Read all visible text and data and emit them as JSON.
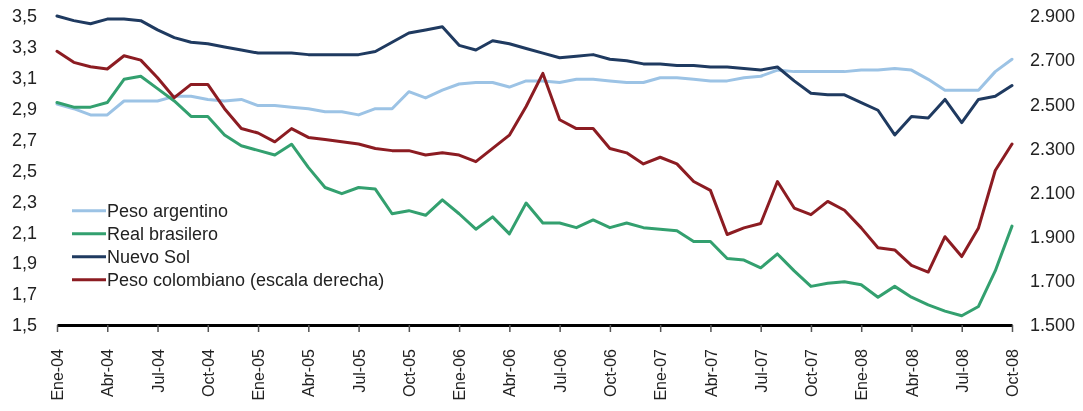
{
  "chart_data": {
    "type": "line",
    "categories": [
      "Ene-04",
      null,
      null,
      "Abr-04",
      null,
      null,
      "Jul-04",
      null,
      null,
      "Oct-04",
      null,
      null,
      "Ene-05",
      null,
      null,
      "Abr-05",
      null,
      null,
      "Jul-05",
      null,
      null,
      "Oct-05",
      null,
      null,
      "Ene-06",
      null,
      null,
      "Abr-06",
      null,
      null,
      "Jul-06",
      null,
      null,
      "Oct-06",
      null,
      null,
      "Ene-07",
      null,
      null,
      "Abr-07",
      null,
      null,
      "Jul-07",
      null,
      null,
      "Oct-07",
      null,
      null,
      "Ene-08",
      null,
      null,
      "Abr-08",
      null,
      null,
      "Jul-08",
      null,
      null,
      "Oct-08"
    ],
    "series": [
      {
        "name": "Peso argentino",
        "color": "#9cc3e5",
        "values": [
          2.93,
          2.9,
          2.86,
          2.86,
          2.95,
          2.95,
          2.95,
          2.98,
          2.98,
          2.96,
          2.95,
          2.96,
          2.92,
          2.92,
          2.91,
          2.9,
          2.88,
          2.88,
          2.86,
          2.9,
          2.9,
          3.01,
          2.97,
          3.02,
          3.06,
          3.07,
          3.07,
          3.04,
          3.08,
          3.08,
          3.07,
          3.09,
          3.09,
          3.08,
          3.07,
          3.07,
          3.1,
          3.1,
          3.09,
          3.08,
          3.08,
          3.1,
          3.11,
          3.15,
          3.14,
          3.14,
          3.14,
          3.14,
          3.15,
          3.15,
          3.16,
          3.15,
          3.09,
          3.02,
          3.02,
          3.02,
          3.14,
          3.22
        ]
      },
      {
        "name": "Real brasilero",
        "color": "#33a06f",
        "values": [
          2.94,
          2.91,
          2.91,
          2.94,
          3.09,
          3.11,
          3.03,
          2.95,
          2.85,
          2.85,
          2.73,
          2.66,
          2.63,
          2.6,
          2.67,
          2.52,
          2.39,
          2.35,
          2.39,
          2.38,
          2.22,
          2.24,
          2.21,
          2.31,
          2.22,
          2.12,
          2.2,
          2.09,
          2.29,
          2.16,
          2.16,
          2.13,
          2.18,
          2.13,
          2.16,
          2.13,
          2.12,
          2.11,
          2.04,
          2.04,
          1.93,
          1.92,
          1.87,
          1.96,
          1.85,
          1.75,
          1.77,
          1.78,
          1.76,
          1.68,
          1.75,
          1.68,
          1.63,
          1.59,
          1.56,
          1.62,
          1.85,
          2.14
        ]
      },
      {
        "name": "Nuevo Sol",
        "color": "#1f3a60",
        "values": [
          3.5,
          3.47,
          3.45,
          3.48,
          3.48,
          3.47,
          3.41,
          3.36,
          3.33,
          3.32,
          3.3,
          3.28,
          3.26,
          3.26,
          3.26,
          3.25,
          3.25,
          3.25,
          3.25,
          3.27,
          3.33,
          3.39,
          3.41,
          3.43,
          3.31,
          3.28,
          3.34,
          3.32,
          3.29,
          3.26,
          3.23,
          3.24,
          3.25,
          3.22,
          3.21,
          3.19,
          3.19,
          3.18,
          3.18,
          3.17,
          3.17,
          3.16,
          3.15,
          3.17,
          3.08,
          3.0,
          2.99,
          2.99,
          2.94,
          2.89,
          2.73,
          2.85,
          2.84,
          2.96,
          2.81,
          2.96,
          2.98,
          3.05
        ]
      },
      {
        "name": "Peso colombiano (escala derecha)",
        "color": "#8c1c22",
        "axis": "y2",
        "values": [
          2740,
          2690,
          2670,
          2660,
          2720,
          2700,
          2620,
          2530,
          2590,
          2590,
          2480,
          2390,
          2370,
          2330,
          2390,
          2350,
          2340,
          2330,
          2320,
          2300,
          2290,
          2290,
          2270,
          2280,
          2270,
          2240,
          2300,
          2360,
          2490,
          2640,
          2430,
          2390,
          2390,
          2300,
          2280,
          2230,
          2260,
          2230,
          2150,
          2110,
          1910,
          1940,
          1960,
          2150,
          2030,
          2000,
          2060,
          2020,
          1940,
          1850,
          1840,
          1770,
          1740,
          1900,
          1810,
          1940,
          2200,
          2320
        ]
      }
    ],
    "ylim": [
      1.5,
      3.5
    ],
    "yticks": [
      {
        "value": 1.5,
        "label": "1,5"
      },
      {
        "value": 1.7,
        "label": "1,7"
      },
      {
        "value": 1.9,
        "label": "1,9"
      },
      {
        "value": 2.1,
        "label": "2,1"
      },
      {
        "value": 2.3,
        "label": "2,3"
      },
      {
        "value": 2.5,
        "label": "2,5"
      },
      {
        "value": 2.7,
        "label": "2,7"
      },
      {
        "value": 2.9,
        "label": "2,9"
      },
      {
        "value": 3.1,
        "label": "3,1"
      },
      {
        "value": 3.3,
        "label": "3,3"
      },
      {
        "value": 3.5,
        "label": "3,5"
      }
    ],
    "y2lim": [
      1500,
      2900
    ],
    "y2ticks": [
      {
        "value": 1500,
        "label": "1.500"
      },
      {
        "value": 1700,
        "label": "1.700"
      },
      {
        "value": 1900,
        "label": "1.900"
      },
      {
        "value": 2100,
        "label": "2.100"
      },
      {
        "value": 2300,
        "label": "2.300"
      },
      {
        "value": 2500,
        "label": "2.500"
      },
      {
        "value": 2700,
        "label": "2.700"
      },
      {
        "value": 2900,
        "label": "2.900"
      }
    ],
    "legend": "bottom left"
  }
}
